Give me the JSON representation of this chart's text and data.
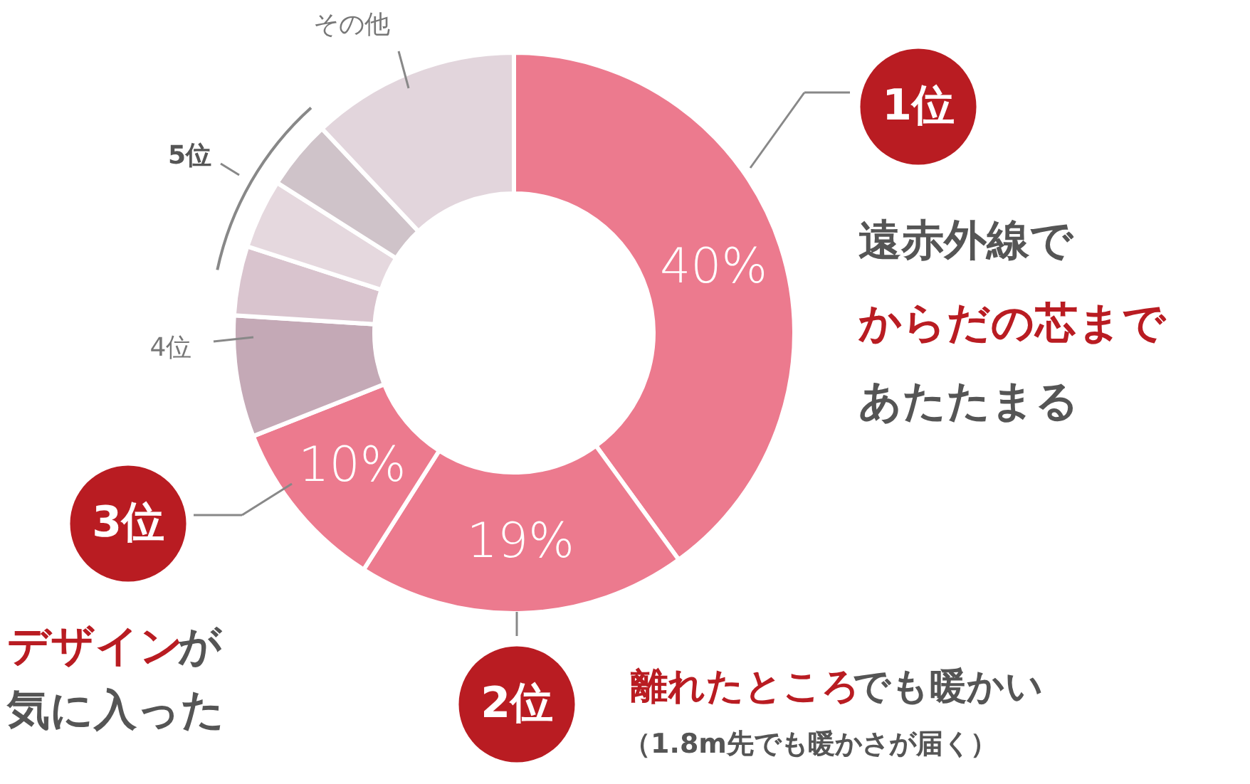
{
  "chart_data": {
    "type": "donut",
    "categories": [
      "1位",
      "2位",
      "3位",
      "4位",
      null,
      null,
      null,
      "その他"
    ],
    "values": [
      40,
      19,
      10,
      7,
      4,
      4,
      4,
      12
    ],
    "colors": [
      "#ec7a8e",
      "#ec7a8e",
      "#ec7a8e",
      "#c4a9b6",
      "#d9c4ce",
      "#e5d8de",
      "#cfc3c9",
      "#e2d5dc"
    ],
    "value_labels": [
      "40%",
      "19%",
      "10%",
      null,
      null,
      null,
      null,
      null
    ],
    "annotations": [
      "遠赤外線で",
      "からだの芯まで",
      "あたたまる",
      "デザイン",
      "が",
      "気に入った",
      "離れたところ",
      "でも暖かい",
      "（1.8m先でも暖かさが届く）",
      "5位"
    ]
  }
}
